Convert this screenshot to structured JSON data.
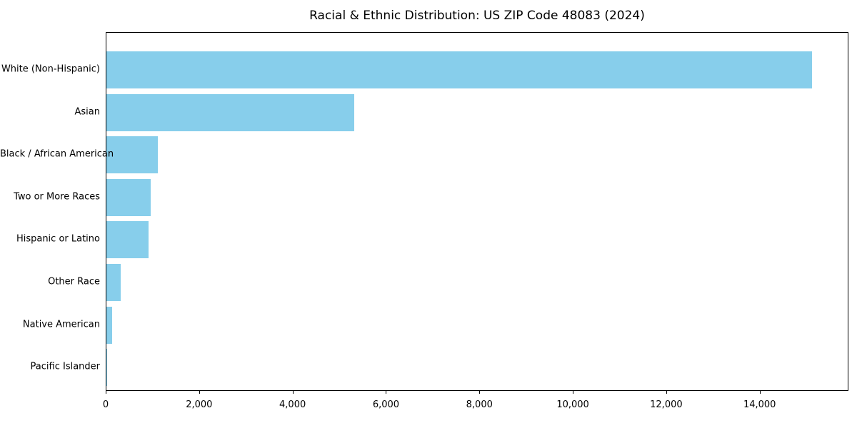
{
  "chart": {
    "title": "Racial & Ethnic Distribution: US ZIP Code 48083 (2024)"
  },
  "chart_data": {
    "type": "bar",
    "orientation": "horizontal",
    "title": "Racial & Ethnic Distribution: US ZIP Code 48083 (2024)",
    "xlabel": "",
    "ylabel": "",
    "categories": [
      "White (Non-Hispanic)",
      "Asian",
      "Black / African American",
      "Two or More Races",
      "Hispanic or Latino",
      "Other Race",
      "Native American",
      "Pacific Islander"
    ],
    "values": [
      15100,
      5300,
      1100,
      950,
      900,
      310,
      120,
      10
    ],
    "xlim": [
      0,
      15900
    ],
    "xticks": [
      0,
      2000,
      4000,
      6000,
      8000,
      10000,
      12000,
      14000
    ],
    "bar_color": "#87CEEB",
    "grid": false,
    "legend": null
  }
}
